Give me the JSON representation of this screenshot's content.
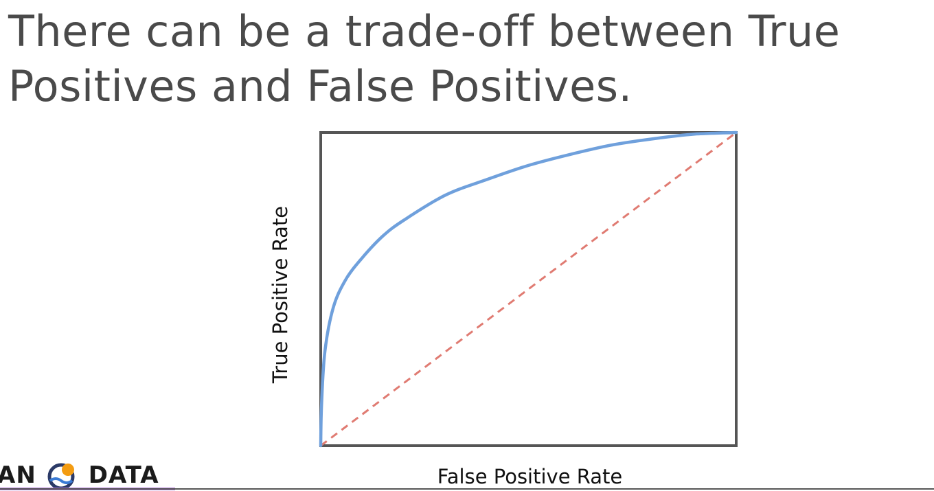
{
  "slide": {
    "title": "There can be a trade-off between True Positives and False Positives."
  },
  "logo": {
    "left_text": "AN",
    "right_text": "DATA",
    "icon": "sun-over-waves-icon",
    "colors": {
      "sun": "#f39c12",
      "ring": "#2b3a67",
      "wave": "#3a7bd5",
      "underline": "#b07ad8"
    }
  },
  "chart_data": {
    "type": "line",
    "xlabel": "False Positive Rate",
    "ylabel": "True Positive Rate",
    "xlim": [
      0,
      1
    ],
    "ylim": [
      0,
      1
    ],
    "grid": false,
    "legend": "none",
    "series": [
      {
        "style": "solid",
        "color": "#6fa0dc",
        "x": [
          0,
          0.002,
          0.01,
          0.03,
          0.06,
          0.1,
          0.15,
          0.2,
          0.3,
          0.4,
          0.5,
          0.6,
          0.7,
          0.8,
          0.9,
          1.0
        ],
        "y": [
          0,
          0.13,
          0.3,
          0.44,
          0.53,
          0.6,
          0.67,
          0.72,
          0.8,
          0.85,
          0.895,
          0.93,
          0.96,
          0.98,
          0.995,
          1.0
        ]
      },
      {
        "style": "dashed",
        "color": "#e07b72",
        "x": [
          0,
          1
        ],
        "y": [
          0,
          1
        ]
      }
    ]
  }
}
